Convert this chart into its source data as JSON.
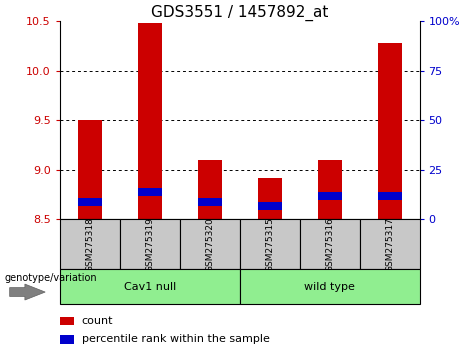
{
  "title": "GDS3551 / 1457892_at",
  "samples": [
    "GSM275318",
    "GSM275319",
    "GSM275320",
    "GSM275315",
    "GSM275316",
    "GSM275317"
  ],
  "bar_base": 8.5,
  "red_tops": [
    9.5,
    10.48,
    9.1,
    8.92,
    9.1,
    10.28
  ],
  "blue_bottoms": [
    8.64,
    8.74,
    8.64,
    8.6,
    8.7,
    8.7
  ],
  "blue_tops": [
    8.72,
    8.82,
    8.72,
    8.68,
    8.78,
    8.78
  ],
  "ylim": [
    8.5,
    10.5
  ],
  "yticks_left": [
    8.5,
    9.0,
    9.5,
    10.0,
    10.5
  ],
  "right_tick_positions": [
    8.5,
    9.0,
    9.5,
    10.0,
    10.5
  ],
  "right_tick_labels": [
    "0",
    "25",
    "50",
    "75",
    "100%"
  ],
  "bar_width": 0.4,
  "red_color": "#CC0000",
  "blue_color": "#0000CC",
  "bg_plot": "#FFFFFF",
  "bg_label": "#C8C8C8",
  "bg_group": "#90EE90",
  "title_fontsize": 11,
  "tick_fontsize": 8,
  "legend_fontsize": 8,
  "sample_fontsize": 6.5,
  "group_fontsize": 8,
  "genotype_fontsize": 7,
  "cav1_samples": [
    0,
    1,
    2
  ],
  "wild_samples": [
    3,
    4,
    5
  ],
  "group1_label": "Cav1 null",
  "group2_label": "wild type",
  "genotype_label": "genotype/variation"
}
